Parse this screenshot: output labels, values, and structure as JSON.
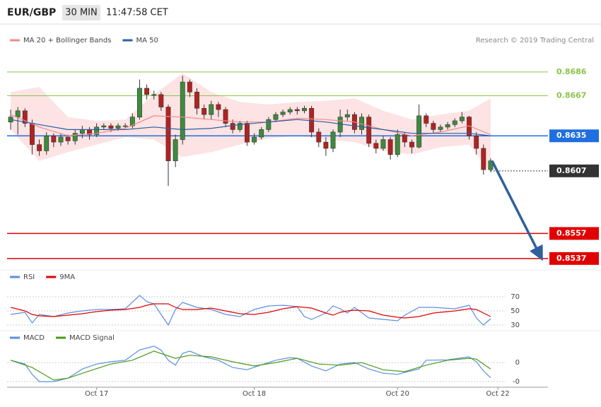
{
  "header": {
    "symbol": "EUR/GBP",
    "interval": "30 MIN",
    "time": "11:47:58 CET"
  },
  "copyright": "Research © 2019 Trading Central",
  "chart_data": [
    {
      "type": "candlestick",
      "up_color": "#3d8b3d",
      "down_color": "#b22222",
      "xlim": [
        -0.5,
        75
      ],
      "ylim": [
        0.8529,
        0.8704
      ],
      "open": [
        0.8646,
        0.865,
        0.8655,
        0.8645,
        0.8628,
        0.8623,
        0.8635,
        0.863,
        0.8634,
        0.8631,
        0.8637,
        0.864,
        0.8636,
        0.8642,
        0.8643,
        0.8641,
        0.8643,
        0.8643,
        0.865,
        0.8673,
        0.8668,
        0.8668,
        0.8658,
        0.8615,
        0.8632,
        0.8678,
        0.867,
        0.8657,
        0.8652,
        0.866,
        0.8656,
        0.8645,
        0.864,
        0.8645,
        0.863,
        0.8634,
        0.864,
        0.8648,
        0.8652,
        0.8654,
        0.8656,
        0.8655,
        0.8657,
        0.8638,
        0.863,
        0.8625,
        0.8638,
        0.865,
        0.8652,
        0.864,
        0.865,
        0.8629,
        0.8625,
        0.8632,
        0.862,
        0.8636,
        0.863,
        0.8626,
        0.8651,
        0.8645,
        0.864,
        0.8642,
        0.8644,
        0.8647,
        0.865,
        0.8635,
        0.8625,
        0.8608
      ],
      "high": [
        0.8656,
        0.8658,
        0.8657,
        0.8648,
        0.8632,
        0.8638,
        0.8637,
        0.8637,
        0.8636,
        0.864,
        0.8643,
        0.8642,
        0.8645,
        0.8645,
        0.8645,
        0.8645,
        0.8645,
        0.8653,
        0.868,
        0.8676,
        0.8671,
        0.867,
        0.866,
        0.8636,
        0.8683,
        0.868,
        0.8673,
        0.866,
        0.8663,
        0.8662,
        0.8658,
        0.8648,
        0.8647,
        0.8647,
        0.8637,
        0.8642,
        0.865,
        0.8654,
        0.8656,
        0.8658,
        0.8658,
        0.8659,
        0.8659,
        0.8641,
        0.8634,
        0.864,
        0.8656,
        0.8656,
        0.8654,
        0.8653,
        0.8652,
        0.8632,
        0.8635,
        0.8634,
        0.864,
        0.8638,
        0.8632,
        0.866,
        0.8653,
        0.8647,
        0.8644,
        0.8646,
        0.8649,
        0.8654,
        0.8651,
        0.8638,
        0.8628,
        0.8617
      ],
      "low": [
        0.864,
        0.8636,
        0.8642,
        0.862,
        0.8619,
        0.862,
        0.8626,
        0.8627,
        0.8628,
        0.8628,
        0.8633,
        0.8632,
        0.8634,
        0.864,
        0.8638,
        0.8639,
        0.8641,
        0.8641,
        0.8648,
        0.8664,
        0.8664,
        0.8655,
        0.8595,
        0.861,
        0.8628,
        0.8666,
        0.8652,
        0.8648,
        0.8648,
        0.865,
        0.8642,
        0.8637,
        0.8638,
        0.8627,
        0.8628,
        0.8632,
        0.8638,
        0.8646,
        0.865,
        0.8652,
        0.8652,
        0.8653,
        0.8634,
        0.8626,
        0.8619,
        0.8622,
        0.8634,
        0.8647,
        0.8637,
        0.8636,
        0.8626,
        0.8621,
        0.8623,
        0.8616,
        0.8618,
        0.8626,
        0.8621,
        0.8625,
        0.8642,
        0.8637,
        0.8638,
        0.864,
        0.8642,
        0.8645,
        0.8632,
        0.862,
        0.8604,
        0.8606
      ],
      "close": [
        0.865,
        0.8655,
        0.8645,
        0.8628,
        0.8623,
        0.8635,
        0.863,
        0.8634,
        0.8631,
        0.8637,
        0.864,
        0.8636,
        0.8642,
        0.8643,
        0.8641,
        0.8643,
        0.8643,
        0.865,
        0.8673,
        0.8668,
        0.8668,
        0.8658,
        0.8615,
        0.8632,
        0.8678,
        0.867,
        0.8657,
        0.8652,
        0.866,
        0.8656,
        0.8645,
        0.864,
        0.8645,
        0.863,
        0.8634,
        0.864,
        0.8648,
        0.8652,
        0.8654,
        0.8656,
        0.8655,
        0.8657,
        0.8638,
        0.863,
        0.8625,
        0.8638,
        0.865,
        0.8652,
        0.864,
        0.865,
        0.8629,
        0.8625,
        0.8632,
        0.862,
        0.8636,
        0.863,
        0.8626,
        0.8651,
        0.8645,
        0.864,
        0.8642,
        0.8644,
        0.8647,
        0.865,
        0.8635,
        0.8625,
        0.8608,
        0.8615
      ],
      "series": [
        {
          "name": "MA 20 + Bollinger Bands",
          "color": "#f08a8a",
          "band_color": "#fde3e3",
          "x": [
            0,
            4,
            8,
            12,
            16,
            20,
            24,
            28,
            32,
            36,
            40,
            44,
            48,
            52,
            56,
            60,
            64,
            67
          ],
          "values": [
            0.8652,
            0.8642,
            0.8635,
            0.8637,
            0.8641,
            0.8651,
            0.865,
            0.8648,
            0.8646,
            0.8646,
            0.8649,
            0.8648,
            0.8646,
            0.864,
            0.8635,
            0.8638,
            0.8643,
            0.8636
          ],
          "upper": [
            0.867,
            0.8674,
            0.865,
            0.8647,
            0.8648,
            0.8668,
            0.8685,
            0.867,
            0.8662,
            0.866,
            0.8662,
            0.8663,
            0.8665,
            0.8655,
            0.8648,
            0.8652,
            0.8655,
            0.8665
          ],
          "lower": [
            0.864,
            0.8615,
            0.8622,
            0.8628,
            0.8634,
            0.8632,
            0.8618,
            0.8622,
            0.8628,
            0.8633,
            0.8635,
            0.8632,
            0.863,
            0.8623,
            0.862,
            0.8626,
            0.8628,
            0.8606
          ]
        },
        {
          "name": "MA 50",
          "color": "#2a5ea8",
          "x": [
            0,
            4,
            8,
            12,
            16,
            20,
            24,
            28,
            32,
            36,
            40,
            44,
            48,
            52,
            56,
            60,
            64,
            67
          ],
          "values": [
            0.8648,
            0.8644,
            0.864,
            0.864,
            0.864,
            0.8642,
            0.864,
            0.8641,
            0.8644,
            0.8646,
            0.8648,
            0.8646,
            0.8643,
            0.864,
            0.8637,
            0.8637,
            0.8637,
            0.8635
          ]
        }
      ],
      "levels": [
        {
          "value": 0.8686,
          "color": "#8bc34a",
          "boxed": false,
          "dashed": false
        },
        {
          "value": 0.8667,
          "color": "#8bc34a",
          "boxed": false,
          "dashed": false
        },
        {
          "value": 0.8635,
          "color": "#1f6fe0",
          "boxed": true,
          "dashed": false
        },
        {
          "value": 0.8607,
          "color": "#333333",
          "boxed": true,
          "dashed": true
        },
        {
          "value": 0.8557,
          "color": "#e10000",
          "boxed": true,
          "dashed": false
        },
        {
          "value": 0.8537,
          "color": "#e10000",
          "boxed": true,
          "dashed": false
        }
      ]
    },
    {
      "type": "line",
      "xlim": [
        -0.5,
        75
      ],
      "ylim": [
        24,
        85
      ],
      "yticks": [
        30,
        50,
        70
      ],
      "series": [
        {
          "name": "RSI",
          "color": "#5b8ee0",
          "x": [
            0,
            2,
            3,
            4,
            6,
            8,
            10,
            12,
            14,
            16,
            18,
            19,
            20,
            22,
            23,
            24,
            26,
            28,
            30,
            32,
            34,
            36,
            38,
            40,
            41,
            42,
            44,
            45,
            46,
            47,
            48,
            50,
            52,
            54,
            55,
            57,
            59,
            62,
            64,
            65,
            66,
            67
          ],
          "values": [
            45,
            48,
            33,
            45,
            42,
            47,
            50,
            52,
            52,
            53,
            72,
            63,
            60,
            30,
            52,
            62,
            55,
            52,
            45,
            42,
            52,
            57,
            58,
            56,
            42,
            38,
            47,
            57,
            53,
            47,
            55,
            40,
            38,
            36,
            44,
            55,
            55,
            53,
            58,
            40,
            30,
            39
          ]
        },
        {
          "name": "9MA",
          "color": "#e10000",
          "x": [
            0,
            2,
            3,
            4,
            6,
            8,
            10,
            12,
            14,
            16,
            18,
            19,
            20,
            22,
            23,
            24,
            26,
            28,
            30,
            32,
            34,
            36,
            38,
            40,
            41,
            42,
            44,
            45,
            46,
            47,
            48,
            50,
            52,
            54,
            55,
            57,
            59,
            62,
            64,
            65,
            66,
            67
          ],
          "values": [
            55,
            50,
            45,
            43,
            42,
            44,
            46,
            49,
            51,
            52,
            55,
            58,
            60,
            60,
            55,
            52,
            52,
            54,
            50,
            46,
            45,
            48,
            53,
            56,
            55,
            54,
            47,
            44,
            48,
            50,
            51,
            50,
            44,
            41,
            40,
            42,
            47,
            50,
            53,
            52,
            47,
            42
          ]
        }
      ]
    },
    {
      "type": "line",
      "xlim": [
        -0.5,
        75
      ],
      "ylim": [
        -0.00061,
        0.00052
      ],
      "yticks": [
        {
          "value": -0.0005,
          "label": "-0"
        },
        0
      ],
      "xticks": [
        {
          "value": 12,
          "label": "Oct 17"
        },
        {
          "value": 34,
          "label": "Oct 18"
        },
        {
          "value": 54,
          "label": "Oct 20"
        },
        {
          "value": 68,
          "label": "Oct 22"
        }
      ],
      "series": [
        {
          "name": "MACD",
          "color": "#5b8ee0",
          "x": [
            0,
            2,
            3,
            4,
            6,
            8,
            10,
            12,
            14,
            16,
            18,
            20,
            21,
            22,
            23,
            24,
            25,
            27,
            29,
            31,
            33,
            35,
            37,
            39,
            40,
            42,
            44,
            46,
            48,
            50,
            52,
            54,
            55,
            57,
            58,
            61,
            64,
            65,
            66,
            67
          ],
          "values": [
            6e-05,
            -4e-05,
            -0.00031,
            -0.0005,
            -0.0005,
            -0.00041,
            -0.00017,
            -4e-05,
            2e-05,
            6e-05,
            0.00033,
            0.00043,
            0.00033,
            6e-05,
            -7e-05,
            0.00024,
            0.0003,
            0.00015,
            6e-05,
            -0.00013,
            -0.00019,
            -6e-05,
            6e-05,
            0.00013,
            0.00011,
            -9e-05,
            -0.00022,
            -4e-05,
            0,
            -0.00017,
            -0.00028,
            -0.00031,
            -0.00026,
            -0.00017,
            6e-05,
            7e-05,
            0.00015,
            2e-05,
            -0.00022,
            -0.0004
          ]
        },
        {
          "name": "MACD Signal",
          "color": "#4a9a1a",
          "x": [
            0,
            3,
            6,
            8,
            11,
            14,
            17,
            20,
            23,
            25,
            28,
            31,
            34,
            37,
            40,
            43,
            46,
            49,
            52,
            55,
            58,
            61,
            64,
            65,
            67
          ],
          "values": [
            6e-05,
            -0.00013,
            -0.00046,
            -0.00041,
            -0.00022,
            -4e-05,
            6e-05,
            0.0003,
            0.00011,
            0.00019,
            0.00015,
            2e-05,
            -9e-05,
            0,
            0.00011,
            -4e-05,
            -7e-05,
            0,
            -0.00019,
            -0.00024,
            -7e-05,
            6e-05,
            0.00011,
            9e-05,
            -0.00017
          ]
        }
      ]
    }
  ]
}
